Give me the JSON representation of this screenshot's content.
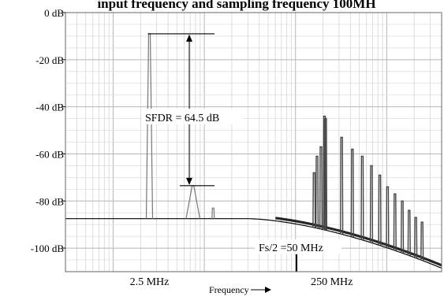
{
  "chart_data": {
    "type": "line",
    "title": "input frequency and sampling frequency 100MH",
    "xlabel": "Frequency",
    "x_scale": "log",
    "xlim": [
      0.3,
      4000
    ],
    "ylim": [
      -110,
      0
    ],
    "y_ticks": [
      {
        "value": 0,
        "label": "0 dB"
      },
      {
        "value": -20,
        "label": "-20 dB"
      },
      {
        "value": -40,
        "label": "-40 dB"
      },
      {
        "value": -60,
        "label": "-60 dB"
      },
      {
        "value": -80,
        "label": "-80 dB"
      },
      {
        "value": -100,
        "label": "-100 dB"
      }
    ],
    "x_ticks": [
      {
        "value": 2.5,
        "label": "2.5 MHz"
      },
      {
        "value": 250,
        "label": "250 MHz"
      }
    ],
    "grid": true,
    "noise_floor_db": -87.5,
    "annotations": {
      "sfdr_label": "SFDR = 64.5 dB",
      "sfdr_top_db": -9,
      "sfdr_bottom_db": -73.5,
      "nyquist_label": "Fs/2 =50 MHz",
      "nyquist_freq_mhz": 50
    },
    "tones": [
      {
        "f": 2.5,
        "db": -9
      },
      {
        "f": 7.5,
        "db": -73.5
      },
      {
        "f": 12.5,
        "db": -83
      },
      {
        "f": 160,
        "db": -68
      },
      {
        "f": 172,
        "db": -61
      },
      {
        "f": 190,
        "db": -57
      },
      {
        "f": 208,
        "db": -44
      },
      {
        "f": 214,
        "db": -45
      },
      {
        "f": 320,
        "db": -53
      },
      {
        "f": 420,
        "db": -58
      },
      {
        "f": 540,
        "db": -61
      },
      {
        "f": 680,
        "db": -65
      },
      {
        "f": 840,
        "db": -69
      },
      {
        "f": 1020,
        "db": -74
      },
      {
        "f": 1230,
        "db": -77
      },
      {
        "f": 1480,
        "db": -80
      },
      {
        "f": 1760,
        "db": -84
      },
      {
        "f": 2080,
        "db": -87
      },
      {
        "f": 2440,
        "db": -89
      }
    ]
  }
}
